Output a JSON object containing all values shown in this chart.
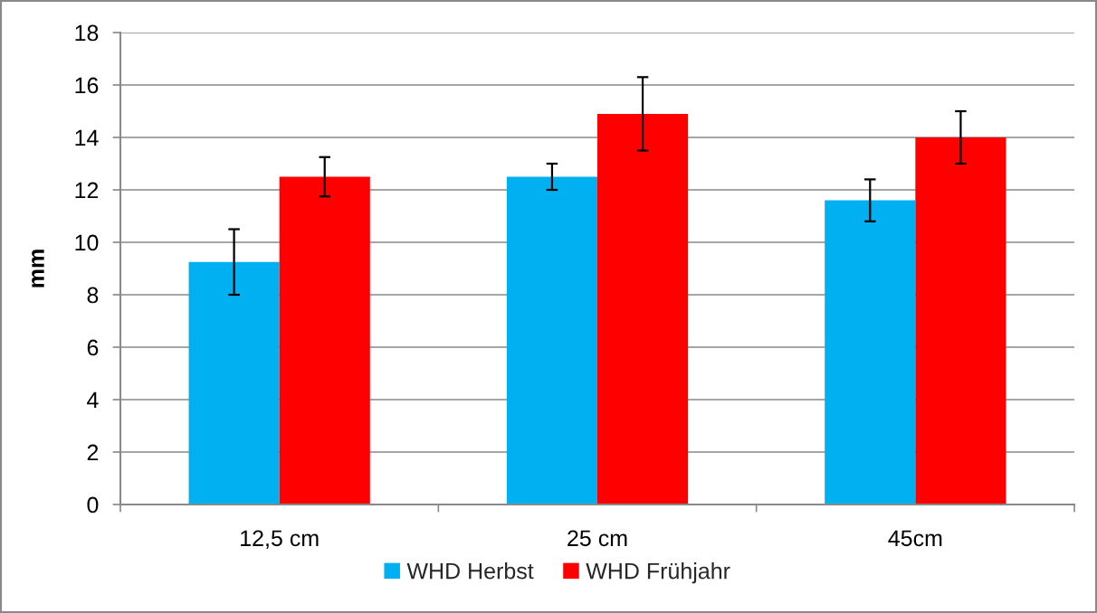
{
  "chart_data": {
    "type": "bar",
    "ylabel": "mm",
    "categories": [
      "12,5 cm",
      "25 cm",
      "45cm"
    ],
    "series": [
      {
        "name": "WHD Herbst",
        "color": "#00b0f0",
        "values": [
          9.25,
          12.5,
          11.6
        ],
        "errors": [
          1.25,
          0.5,
          0.8
        ]
      },
      {
        "name": "WHD Frühjahr",
        "color": "#ff0000",
        "values": [
          12.5,
          14.9,
          14.0
        ],
        "errors": [
          0.75,
          1.4,
          1.0
        ]
      }
    ],
    "ylim": [
      0,
      18
    ],
    "yticks": [
      0,
      2,
      4,
      6,
      8,
      10,
      12,
      14,
      16,
      18
    ],
    "grid": "y",
    "legend": "bottom"
  }
}
